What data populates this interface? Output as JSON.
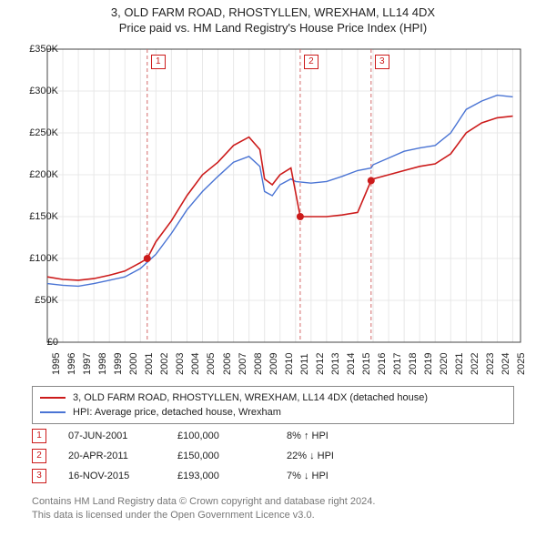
{
  "title_line1": "3, OLD FARM ROAD, RHOSTYLLEN, WREXHAM, LL14 4DX",
  "title_line2": "Price paid vs. HM Land Registry's House Price Index (HPI)",
  "chart": {
    "type": "line",
    "xlim": [
      1995,
      2025.5
    ],
    "ylim": [
      0,
      350000
    ],
    "y_ticks": [
      0,
      50000,
      100000,
      150000,
      200000,
      250000,
      300000,
      350000
    ],
    "y_tick_labels": [
      "£0",
      "£50K",
      "£100K",
      "£150K",
      "£200K",
      "£250K",
      "£300K",
      "£350K"
    ],
    "x_ticks": [
      1995,
      1996,
      1997,
      1998,
      1999,
      2000,
      2001,
      2002,
      2003,
      2004,
      2005,
      2006,
      2007,
      2008,
      2009,
      2010,
      2011,
      2012,
      2013,
      2014,
      2015,
      2016,
      2017,
      2018,
      2019,
      2020,
      2021,
      2022,
      2023,
      2024,
      2025
    ],
    "grid_color": "#e8e8e8",
    "axis_color": "#444444",
    "background": "#ffffff",
    "series": [
      {
        "name": "price_paid",
        "color": "#cc1b1b",
        "width": 1.6,
        "points": [
          [
            1995,
            78000
          ],
          [
            1996,
            75000
          ],
          [
            1997,
            74000
          ],
          [
            1998,
            76000
          ],
          [
            1999,
            80000
          ],
          [
            2000,
            85000
          ],
          [
            2001,
            95000
          ],
          [
            2001.44,
            100000
          ],
          [
            2002,
            120000
          ],
          [
            2003,
            145000
          ],
          [
            2004,
            175000
          ],
          [
            2005,
            200000
          ],
          [
            2006,
            215000
          ],
          [
            2007,
            235000
          ],
          [
            2008,
            245000
          ],
          [
            2008.7,
            230000
          ],
          [
            2009,
            195000
          ],
          [
            2009.5,
            188000
          ],
          [
            2010,
            200000
          ],
          [
            2010.7,
            208000
          ],
          [
            2011.3,
            150000
          ],
          [
            2012,
            150000
          ],
          [
            2013,
            150000
          ],
          [
            2014,
            152000
          ],
          [
            2015,
            155000
          ],
          [
            2015.87,
            193000
          ],
          [
            2016,
            195000
          ],
          [
            2017,
            200000
          ],
          [
            2018,
            205000
          ],
          [
            2019,
            210000
          ],
          [
            2020,
            213000
          ],
          [
            2021,
            225000
          ],
          [
            2022,
            250000
          ],
          [
            2023,
            262000
          ],
          [
            2024,
            268000
          ],
          [
            2025,
            270000
          ]
        ]
      },
      {
        "name": "hpi",
        "color": "#4a74d4",
        "width": 1.4,
        "points": [
          [
            1995,
            70000
          ],
          [
            1996,
            68000
          ],
          [
            1997,
            67000
          ],
          [
            1998,
            70000
          ],
          [
            1999,
            74000
          ],
          [
            2000,
            78000
          ],
          [
            2001,
            88000
          ],
          [
            2002,
            105000
          ],
          [
            2003,
            130000
          ],
          [
            2004,
            158000
          ],
          [
            2005,
            180000
          ],
          [
            2006,
            198000
          ],
          [
            2007,
            215000
          ],
          [
            2008,
            222000
          ],
          [
            2008.7,
            210000
          ],
          [
            2009,
            180000
          ],
          [
            2009.5,
            175000
          ],
          [
            2010,
            188000
          ],
          [
            2010.7,
            195000
          ],
          [
            2011,
            192000
          ],
          [
            2012,
            190000
          ],
          [
            2013,
            192000
          ],
          [
            2014,
            198000
          ],
          [
            2015,
            205000
          ],
          [
            2015.87,
            208000
          ],
          [
            2016,
            212000
          ],
          [
            2017,
            220000
          ],
          [
            2018,
            228000
          ],
          [
            2019,
            232000
          ],
          [
            2020,
            235000
          ],
          [
            2021,
            250000
          ],
          [
            2022,
            278000
          ],
          [
            2023,
            288000
          ],
          [
            2024,
            295000
          ],
          [
            2025,
            293000
          ]
        ]
      }
    ],
    "sale_markers": [
      {
        "n": "1",
        "x": 2001.44,
        "y": 100000
      },
      {
        "n": "2",
        "x": 2011.3,
        "y": 150000
      },
      {
        "n": "3",
        "x": 2015.87,
        "y": 193000
      }
    ],
    "marker_vline_color": "#d46a6a",
    "marker_dot_color": "#cc1b1b"
  },
  "legend": {
    "items": [
      {
        "color": "#cc1b1b",
        "label": "3, OLD FARM ROAD, RHOSTYLLEN, WREXHAM, LL14 4DX (detached house)"
      },
      {
        "color": "#4a74d4",
        "label": "HPI: Average price, detached house, Wrexham"
      }
    ]
  },
  "events": [
    {
      "n": "1",
      "date": "07-JUN-2001",
      "price": "£100,000",
      "delta": "8% ↑ HPI"
    },
    {
      "n": "2",
      "date": "20-APR-2011",
      "price": "£150,000",
      "delta": "22% ↓ HPI"
    },
    {
      "n": "3",
      "date": "16-NOV-2015",
      "price": "£193,000",
      "delta": "7% ↓ HPI"
    }
  ],
  "footnote_line1": "Contains HM Land Registry data © Crown copyright and database right 2024.",
  "footnote_line2": "This data is licensed under the Open Government Licence v3.0."
}
